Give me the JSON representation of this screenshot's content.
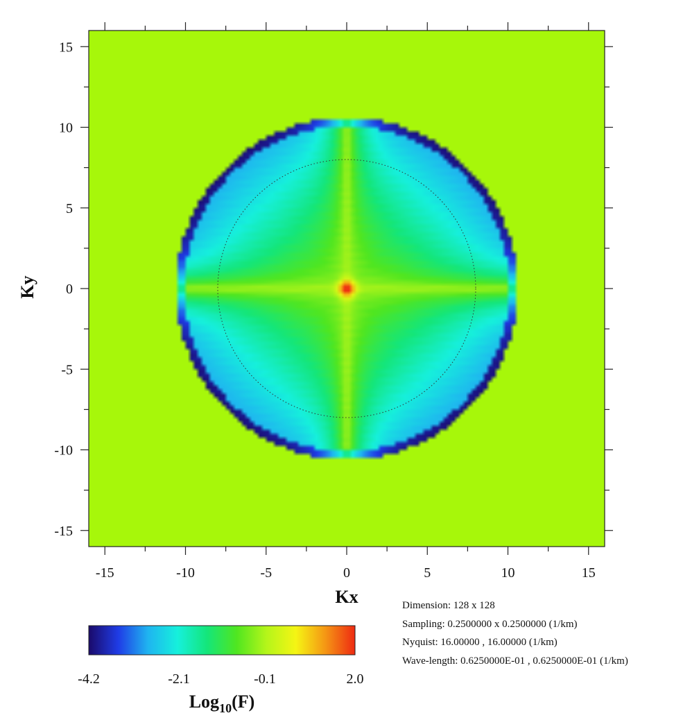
{
  "chart_data": {
    "type": "heatmap",
    "xlabel": "Kx",
    "ylabel": "Ky",
    "x_ticks": [
      "-15",
      "-10",
      "-5",
      "0",
      "5",
      "10",
      "15"
    ],
    "y_ticks": [
      "15",
      "10",
      "5",
      "0",
      "-5",
      "-10",
      "-15"
    ],
    "xlim": [
      -16,
      16
    ],
    "ylim": [
      -16,
      16
    ],
    "grid": 128,
    "outside_color": "#a7f70a",
    "radius": 10.6,
    "reference_circle_radius": 8,
    "colorbar": {
      "ticks": [
        "-4.2",
        "-2.1",
        "-0.1",
        "2.0"
      ],
      "range": [
        -4.2,
        2.0
      ],
      "stops": [
        "#1a0a6a",
        "#1f3ce6",
        "#1fb4f0",
        "#16f0dc",
        "#14e67a",
        "#50e620",
        "#b4f51a",
        "#f5f514",
        "#f59614",
        "#ee2a12"
      ],
      "label_main": "Log",
      "label_sub": "10",
      "label_tail": "(F)"
    }
  },
  "info": {
    "dimension": "Dimension:  128  x  128",
    "sampling": "Sampling:  0.2500000   x   0.2500000  (1/km)",
    "nyquist": "Nyquist:    16.00000   ,  16.00000  (1/km)",
    "wavelength": "Wave-length:   0.6250000E-01  ,  0.6250000E-01  (1/km)"
  }
}
